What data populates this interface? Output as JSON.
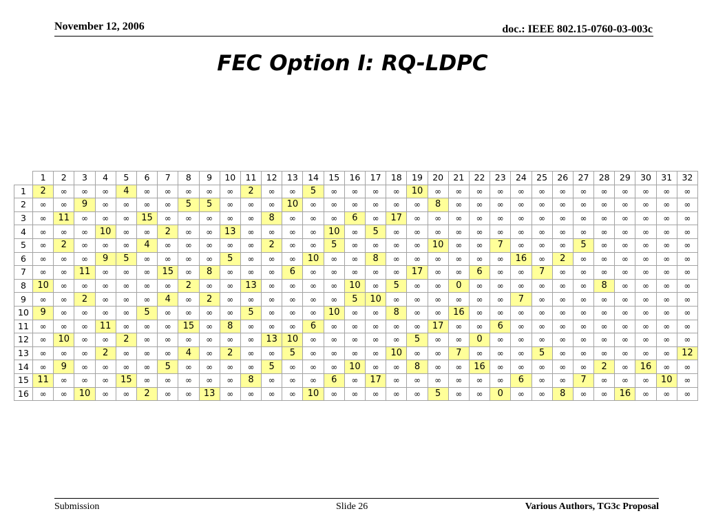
{
  "header": {
    "date": "November 12, 2006",
    "doc_id": "doc.: IEEE 802.15-0760-03-003c"
  },
  "title": "FEC Option I: RQ-LDPC",
  "matrix": {
    "empty_symbol": "∞",
    "highlight_color": "#ffff99",
    "column_headers": [
      "1",
      "2",
      "3",
      "4",
      "5",
      "6",
      "7",
      "8",
      "9",
      "10",
      "11",
      "12",
      "13",
      "14",
      "15",
      "16",
      "17",
      "18",
      "19",
      "20",
      "21",
      "22",
      "23",
      "24",
      "25",
      "26",
      "27",
      "28",
      "29",
      "30",
      "31",
      "32"
    ],
    "rows": [
      {
        "label": "1",
        "cells": [
          2,
          null,
          null,
          null,
          4,
          null,
          null,
          null,
          null,
          null,
          2,
          null,
          null,
          5,
          null,
          null,
          null,
          null,
          10,
          null,
          null,
          null,
          null,
          null,
          null,
          null,
          null,
          null,
          null,
          null,
          null,
          null
        ]
      },
      {
        "label": "2",
        "cells": [
          null,
          null,
          9,
          null,
          null,
          null,
          null,
          5,
          5,
          null,
          null,
          null,
          10,
          null,
          null,
          null,
          null,
          null,
          null,
          8,
          null,
          null,
          null,
          null,
          null,
          null,
          null,
          null,
          null,
          null,
          null,
          null
        ]
      },
      {
        "label": "3",
        "cells": [
          null,
          11,
          null,
          null,
          null,
          15,
          null,
          null,
          null,
          null,
          null,
          8,
          null,
          null,
          null,
          6,
          null,
          17,
          null,
          null,
          null,
          null,
          null,
          null,
          null,
          null,
          null,
          null,
          null,
          null,
          null,
          null
        ]
      },
      {
        "label": "4",
        "cells": [
          null,
          null,
          null,
          10,
          null,
          null,
          2,
          null,
          null,
          13,
          null,
          null,
          null,
          null,
          10,
          null,
          5,
          null,
          null,
          null,
          null,
          null,
          null,
          null,
          null,
          null,
          null,
          null,
          null,
          null,
          null,
          null
        ]
      },
      {
        "label": "5",
        "cells": [
          null,
          2,
          null,
          null,
          null,
          4,
          null,
          null,
          null,
          null,
          null,
          2,
          null,
          null,
          5,
          null,
          null,
          null,
          null,
          10,
          null,
          null,
          7,
          null,
          null,
          null,
          5,
          null,
          null,
          null,
          null,
          null
        ]
      },
      {
        "label": "6",
        "cells": [
          null,
          null,
          null,
          9,
          5,
          null,
          null,
          null,
          null,
          5,
          null,
          null,
          null,
          10,
          null,
          null,
          8,
          null,
          null,
          null,
          null,
          null,
          null,
          16,
          null,
          2,
          null,
          null,
          null,
          null,
          null,
          null
        ]
      },
      {
        "label": "7",
        "cells": [
          null,
          null,
          11,
          null,
          null,
          null,
          15,
          null,
          8,
          null,
          null,
          null,
          6,
          null,
          null,
          null,
          null,
          null,
          17,
          null,
          null,
          6,
          null,
          null,
          7,
          null,
          null,
          null,
          null,
          null,
          null,
          null
        ]
      },
      {
        "label": "8",
        "cells": [
          10,
          null,
          null,
          null,
          null,
          null,
          null,
          2,
          null,
          null,
          13,
          null,
          null,
          null,
          null,
          10,
          null,
          5,
          null,
          null,
          0,
          null,
          null,
          null,
          null,
          null,
          null,
          8,
          null,
          null,
          null,
          null
        ]
      },
      {
        "label": "9",
        "cells": [
          null,
          null,
          2,
          null,
          null,
          null,
          4,
          null,
          2,
          null,
          null,
          null,
          null,
          null,
          null,
          5,
          10,
          null,
          null,
          null,
          null,
          null,
          null,
          7,
          null,
          null,
          null,
          null,
          null,
          null,
          null,
          null
        ]
      },
      {
        "label": "10",
        "cells": [
          9,
          null,
          null,
          null,
          null,
          5,
          null,
          null,
          null,
          null,
          5,
          null,
          null,
          null,
          10,
          null,
          null,
          8,
          null,
          null,
          16,
          null,
          null,
          null,
          null,
          null,
          null,
          null,
          null,
          null,
          null,
          null
        ]
      },
      {
        "label": "11",
        "cells": [
          null,
          null,
          null,
          11,
          null,
          null,
          null,
          15,
          null,
          8,
          null,
          null,
          null,
          6,
          null,
          null,
          null,
          null,
          null,
          17,
          null,
          null,
          6,
          null,
          null,
          null,
          null,
          null,
          null,
          null,
          null,
          null
        ]
      },
      {
        "label": "12",
        "cells": [
          null,
          10,
          null,
          null,
          2,
          null,
          null,
          null,
          null,
          null,
          null,
          13,
          10,
          null,
          null,
          null,
          null,
          null,
          5,
          null,
          null,
          0,
          null,
          null,
          null,
          null,
          null,
          null,
          null,
          null,
          null,
          null
        ]
      },
      {
        "label": "13",
        "cells": [
          null,
          null,
          null,
          2,
          null,
          null,
          null,
          4,
          null,
          2,
          null,
          null,
          5,
          null,
          null,
          null,
          null,
          10,
          null,
          null,
          7,
          null,
          null,
          null,
          5,
          null,
          null,
          null,
          null,
          null,
          null,
          12
        ]
      },
      {
        "label": "14",
        "cells": [
          null,
          9,
          null,
          null,
          null,
          null,
          5,
          null,
          null,
          null,
          null,
          5,
          null,
          null,
          null,
          10,
          null,
          null,
          8,
          null,
          null,
          16,
          null,
          null,
          null,
          null,
          null,
          2,
          null,
          16,
          null,
          null
        ]
      },
      {
        "label": "15",
        "cells": [
          11,
          null,
          null,
          null,
          15,
          null,
          null,
          null,
          null,
          null,
          8,
          null,
          null,
          null,
          6,
          null,
          17,
          null,
          null,
          null,
          null,
          null,
          null,
          6,
          null,
          null,
          7,
          null,
          null,
          null,
          10,
          null
        ]
      },
      {
        "label": "16",
        "cells": [
          null,
          null,
          10,
          null,
          null,
          2,
          null,
          null,
          13,
          null,
          null,
          null,
          null,
          10,
          null,
          null,
          null,
          null,
          null,
          5,
          null,
          null,
          0,
          null,
          null,
          8,
          null,
          null,
          16,
          null,
          null,
          null
        ]
      }
    ]
  },
  "footer": {
    "left": "Submission",
    "center": "Slide 26",
    "right": "Various Authors, TG3c Proposal"
  }
}
